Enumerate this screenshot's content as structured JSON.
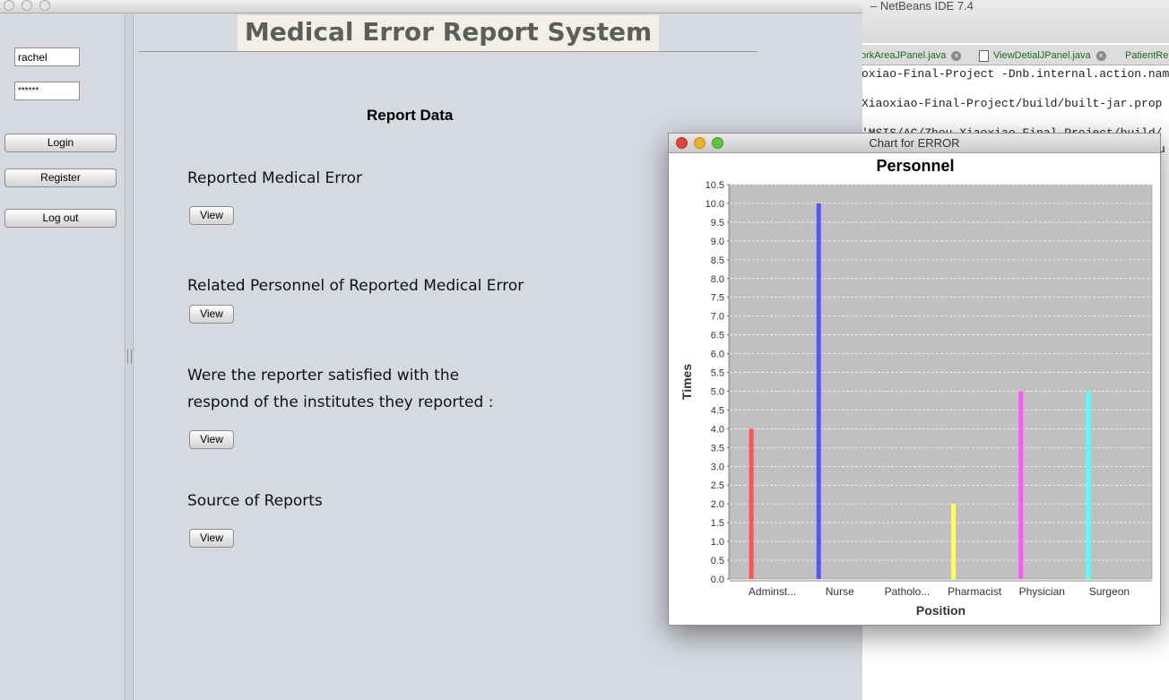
{
  "netbeans": {
    "title": "– NetBeans IDE 7.4",
    "tabs": [
      "orkAreaJPanel.java",
      "ViewDetialJPanel.java",
      "PatientRe"
    ],
    "lines": [
      "oxiao-Final-Project -Dnb.internal.action.nam",
      "Xiaoxiao-Final-Project/build/built-jar.prop",
      "'MSIS/AC/Zhou Xiaoxiao Final Project/build/",
      "u"
    ]
  },
  "login": {
    "username": "rachel",
    "password": "******",
    "login_label": "Login",
    "register_label": "Register",
    "logout_label": "Log out"
  },
  "main": {
    "banner": "Medical Error Report System",
    "heading": "Report Data",
    "sections": [
      {
        "label": "Reported Medical Error",
        "button": "View"
      },
      {
        "label": "Related Personnel of Reported Medical Error",
        "button": "View"
      },
      {
        "label_line1": "Were the reporter satisfied with the",
        "label_line2": "respond of the institutes they reported :",
        "button": "View"
      },
      {
        "label": "Source of Reports",
        "button": "View"
      }
    ]
  },
  "chart_window": {
    "title": "Chart for ERROR"
  },
  "chart_data": {
    "type": "bar",
    "title": "Personnel",
    "xlabel": "Position",
    "ylabel": "Times",
    "categories": [
      "Adminst...",
      "Nurse",
      "Patholo...",
      "Pharmacist",
      "Physician",
      "Surgeon"
    ],
    "values": [
      4.0,
      10.0,
      0.0,
      2.0,
      5.0,
      5.0
    ],
    "colors": [
      "#ff5555",
      "#5555ff",
      "#55ff55",
      "#ffff55",
      "#ff55ff",
      "#55ffff"
    ],
    "ylim": [
      0,
      10.5
    ],
    "ytick_step": 0.5,
    "grid": true,
    "plot_background": "#c0c0c0"
  }
}
